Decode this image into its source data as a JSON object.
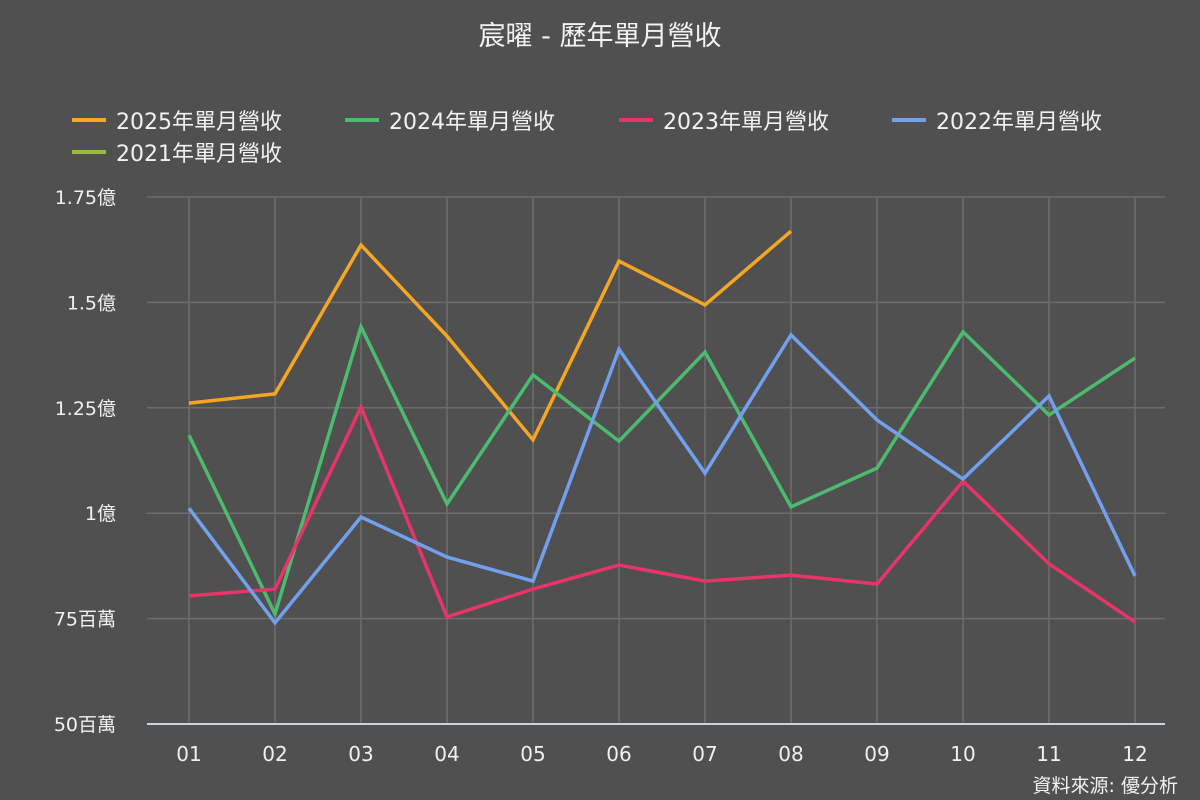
{
  "chart_data": {
    "type": "line",
    "title": "宸曜 - 歷年單月營收",
    "xlabel": "",
    "ylabel": "",
    "units": "百萬",
    "categories": [
      "01",
      "02",
      "03",
      "04",
      "05",
      "06",
      "07",
      "08",
      "09",
      "10",
      "11",
      "12"
    ],
    "ylim": [
      50,
      175
    ],
    "yticks": [
      {
        "value": 50,
        "label": "50百萬"
      },
      {
        "value": 75,
        "label": "75百萬"
      },
      {
        "value": 100,
        "label": "1億"
      },
      {
        "value": 125,
        "label": "1.25億"
      },
      {
        "value": 150,
        "label": "1.5億"
      },
      {
        "value": 175,
        "label": "1.75億"
      }
    ],
    "grid": true,
    "legend_position": "top",
    "series": [
      {
        "name": "2025年單月營收",
        "color": "#f5a623",
        "values": [
          126.1,
          128.3,
          163.6,
          142.0,
          117.4,
          159.8,
          149.4,
          166.9,
          null,
          null,
          null,
          null
        ]
      },
      {
        "name": "2024年單月營收",
        "color": "#4dbb6e",
        "values": [
          118.5,
          76.1,
          144.2,
          102.2,
          132.8,
          117.1,
          138.2,
          101.5,
          110.7,
          143.0,
          123.3,
          136.8
        ]
      },
      {
        "name": "2023年單月營收",
        "color": "#e8336b",
        "values": [
          80.4,
          82.0,
          125.2,
          75.4,
          82.0,
          87.7,
          83.9,
          85.3,
          83.2,
          107.6,
          88.0,
          74.2
        ]
      },
      {
        "name": "2022年單月營收",
        "color": "#72a0ef",
        "values": [
          101.2,
          74.0,
          99.1,
          89.6,
          83.9,
          138.9,
          109.5,
          142.3,
          122.1,
          108.1,
          127.8,
          85.1
        ]
      },
      {
        "name": "2021年單月營收",
        "color": "#9bbb3a",
        "values": [
          null,
          null,
          null,
          null,
          null,
          null,
          null,
          null,
          null,
          null,
          null,
          null
        ]
      }
    ]
  },
  "source": "資料來源: 優分析"
}
